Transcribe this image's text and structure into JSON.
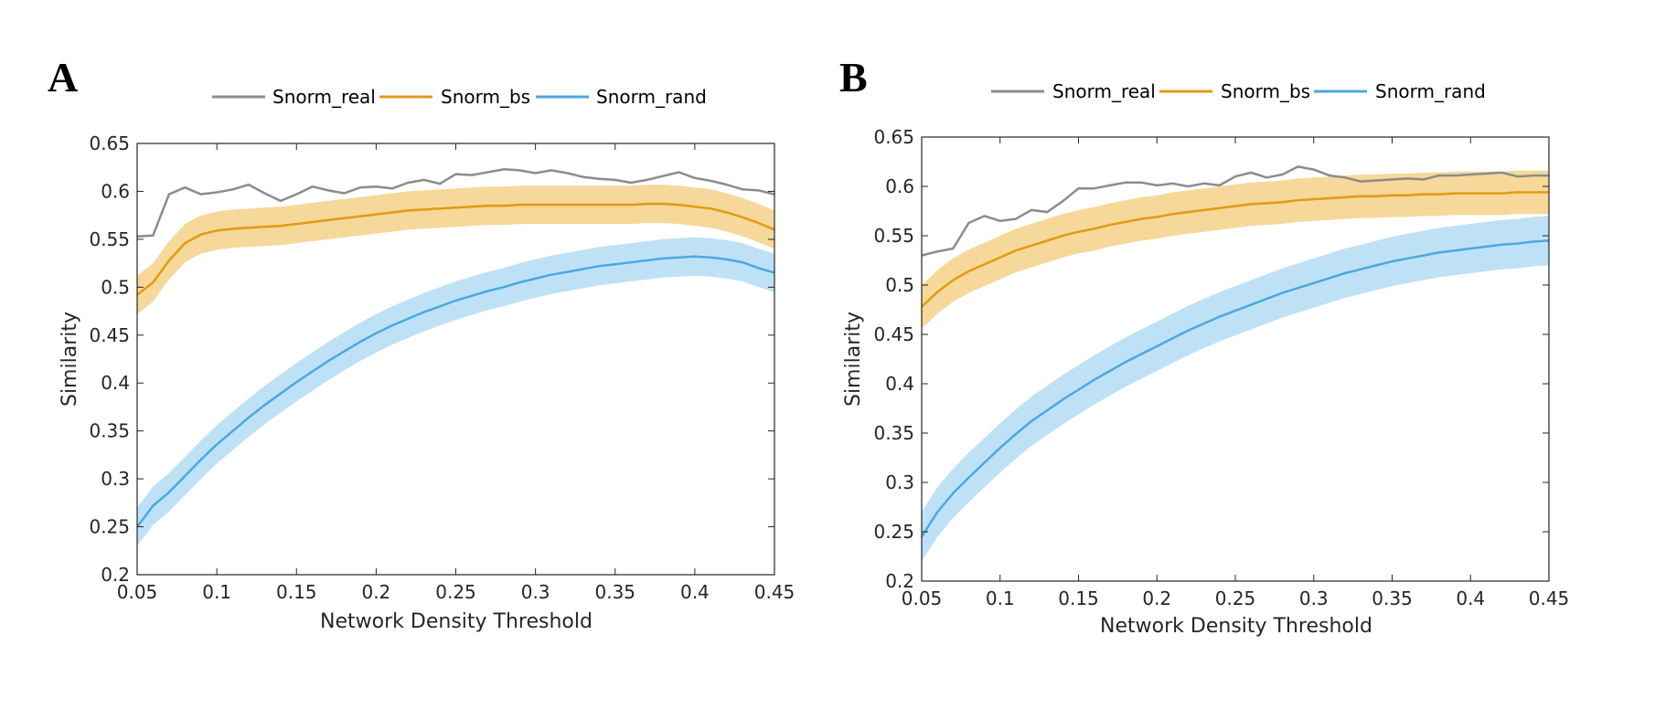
{
  "colors": {
    "real": "#8c8c8c",
    "bs": "#e39b12",
    "bs_band": "#f4d189",
    "rand": "#4aa9e0",
    "rand_band": "#b4dcf4",
    "axis": "#262626"
  },
  "chart_data": [
    {
      "panel": "A",
      "type": "line",
      "xlabel": "Network Density Threshold",
      "ylabel": "Similarity",
      "xlim": [
        0.05,
        0.45
      ],
      "ylim": [
        0.2,
        0.65
      ],
      "xticks": [
        "0.05",
        "0.1",
        "0.15",
        "0.2",
        "0.25",
        "0.3",
        "0.35",
        "0.4",
        "0.45"
      ],
      "yticks": [
        "0.2",
        "0.25",
        "0.3",
        "0.35",
        "0.4",
        "0.45",
        "0.5",
        "0.55",
        "0.6",
        "0.65"
      ],
      "legend": [
        "Snorm_real",
        "Snorm_bs",
        "Snorm_rand"
      ],
      "x": [
        0.05,
        0.06,
        0.07,
        0.08,
        0.09,
        0.1,
        0.11,
        0.12,
        0.13,
        0.14,
        0.15,
        0.16,
        0.17,
        0.18,
        0.19,
        0.2,
        0.21,
        0.22,
        0.23,
        0.24,
        0.25,
        0.26,
        0.27,
        0.28,
        0.29,
        0.3,
        0.31,
        0.32,
        0.33,
        0.34,
        0.35,
        0.36,
        0.37,
        0.38,
        0.39,
        0.4,
        0.41,
        0.42,
        0.43,
        0.44,
        0.45
      ],
      "series": [
        {
          "name": "Snorm_real",
          "values": [
            0.553,
            0.554,
            0.597,
            0.604,
            0.597,
            0.599,
            0.602,
            0.607,
            0.598,
            0.59,
            0.597,
            0.605,
            0.601,
            0.598,
            0.604,
            0.605,
            0.603,
            0.609,
            0.612,
            0.608,
            0.618,
            0.617,
            0.62,
            0.623,
            0.622,
            0.619,
            0.622,
            0.619,
            0.615,
            0.613,
            0.612,
            0.609,
            0.612,
            0.616,
            0.62,
            0.614,
            0.611,
            0.607,
            0.602,
            0.601,
            0.597
          ]
        },
        {
          "name": "Snorm_bs",
          "values": [
            0.492,
            0.505,
            0.528,
            0.546,
            0.555,
            0.559,
            0.561,
            0.562,
            0.563,
            0.564,
            0.566,
            0.568,
            0.57,
            0.572,
            0.574,
            0.576,
            0.578,
            0.58,
            0.581,
            0.582,
            0.583,
            0.584,
            0.585,
            0.585,
            0.586,
            0.586,
            0.586,
            0.586,
            0.586,
            0.586,
            0.586,
            0.586,
            0.587,
            0.587,
            0.586,
            0.584,
            0.582,
            0.578,
            0.573,
            0.567,
            0.56
          ],
          "band": 0.02
        },
        {
          "name": "Snorm_rand",
          "values": [
            0.25,
            0.272,
            0.286,
            0.303,
            0.32,
            0.336,
            0.35,
            0.364,
            0.377,
            0.389,
            0.401,
            0.412,
            0.423,
            0.433,
            0.443,
            0.452,
            0.46,
            0.467,
            0.474,
            0.48,
            0.486,
            0.491,
            0.496,
            0.5,
            0.505,
            0.509,
            0.513,
            0.516,
            0.519,
            0.522,
            0.524,
            0.526,
            0.528,
            0.53,
            0.531,
            0.532,
            0.531,
            0.529,
            0.526,
            0.52,
            0.515
          ],
          "band": 0.02
        }
      ]
    },
    {
      "panel": "B",
      "type": "line",
      "xlabel": "Network Density Threshold",
      "ylabel": "Similarity",
      "xlim": [
        0.05,
        0.45
      ],
      "ylim": [
        0.2,
        0.65
      ],
      "xticks": [
        "0.05",
        "0.1",
        "0.15",
        "0.2",
        "0.25",
        "0.3",
        "0.35",
        "0.4",
        "0.45"
      ],
      "yticks": [
        "0.2",
        "0.25",
        "0.3",
        "0.35",
        "0.4",
        "0.45",
        "0.5",
        "0.55",
        "0.6",
        "0.65"
      ],
      "legend": [
        "Snorm_real",
        "Snorm_bs",
        "Snorm_rand"
      ],
      "x": [
        0.05,
        0.06,
        0.07,
        0.08,
        0.09,
        0.1,
        0.11,
        0.12,
        0.13,
        0.14,
        0.15,
        0.16,
        0.17,
        0.18,
        0.19,
        0.2,
        0.21,
        0.22,
        0.23,
        0.24,
        0.25,
        0.26,
        0.27,
        0.28,
        0.29,
        0.3,
        0.31,
        0.32,
        0.33,
        0.34,
        0.35,
        0.36,
        0.37,
        0.38,
        0.39,
        0.4,
        0.41,
        0.42,
        0.43,
        0.44,
        0.45
      ],
      "series": [
        {
          "name": "Snorm_real",
          "values": [
            0.53,
            0.534,
            0.537,
            0.563,
            0.57,
            0.565,
            0.567,
            0.576,
            0.574,
            0.585,
            0.598,
            0.598,
            0.601,
            0.604,
            0.604,
            0.601,
            0.603,
            0.6,
            0.603,
            0.601,
            0.61,
            0.614,
            0.609,
            0.612,
            0.62,
            0.617,
            0.611,
            0.609,
            0.605,
            0.606,
            0.607,
            0.608,
            0.607,
            0.611,
            0.611,
            0.612,
            0.613,
            0.614,
            0.61,
            0.611,
            0.611
          ]
        },
        {
          "name": "Snorm_bs",
          "values": [
            0.478,
            0.493,
            0.505,
            0.514,
            0.521,
            0.528,
            0.535,
            0.54,
            0.545,
            0.55,
            0.554,
            0.557,
            0.561,
            0.564,
            0.567,
            0.569,
            0.572,
            0.574,
            0.576,
            0.578,
            0.58,
            0.582,
            0.583,
            0.584,
            0.586,
            0.587,
            0.588,
            0.589,
            0.59,
            0.59,
            0.591,
            0.591,
            0.592,
            0.592,
            0.593,
            0.593,
            0.593,
            0.593,
            0.594,
            0.594,
            0.594
          ],
          "band": 0.022
        },
        {
          "name": "Snorm_rand",
          "values": [
            0.245,
            0.27,
            0.289,
            0.305,
            0.32,
            0.335,
            0.349,
            0.362,
            0.373,
            0.384,
            0.394,
            0.404,
            0.413,
            0.422,
            0.43,
            0.438,
            0.446,
            0.454,
            0.461,
            0.468,
            0.474,
            0.48,
            0.486,
            0.492,
            0.497,
            0.502,
            0.507,
            0.512,
            0.516,
            0.52,
            0.524,
            0.527,
            0.53,
            0.533,
            0.535,
            0.537,
            0.539,
            0.541,
            0.542,
            0.544,
            0.545
          ],
          "band": 0.025
        }
      ]
    }
  ]
}
